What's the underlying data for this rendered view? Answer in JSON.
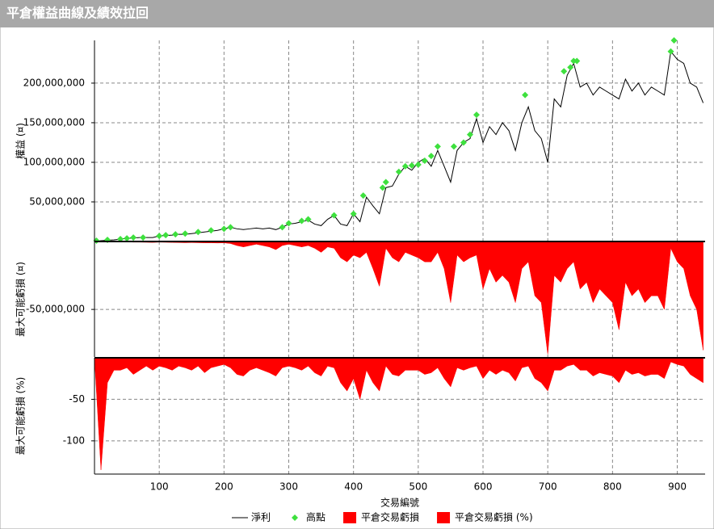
{
  "chart_data": [
    {
      "type": "line",
      "title": "平倉權益曲線及績效拉回",
      "ylabel": "權益 (¤)",
      "x": [
        0,
        10,
        20,
        30,
        40,
        50,
        60,
        70,
        80,
        90,
        100,
        110,
        120,
        130,
        140,
        150,
        160,
        170,
        180,
        190,
        200,
        210,
        220,
        230,
        240,
        250,
        260,
        270,
        280,
        290,
        300,
        310,
        320,
        330,
        340,
        350,
        360,
        370,
        380,
        390,
        400,
        410,
        420,
        430,
        440,
        450,
        460,
        470,
        480,
        490,
        500,
        510,
        520,
        530,
        540,
        550,
        560,
        570,
        580,
        590,
        600,
        610,
        620,
        630,
        640,
        650,
        660,
        670,
        680,
        690,
        700,
        710,
        720,
        730,
        740,
        750,
        760,
        770,
        780,
        790,
        800,
        810,
        820,
        830,
        840,
        850,
        860,
        870,
        880,
        890,
        900,
        910,
        920,
        930,
        940
      ],
      "series": [
        {
          "name": "淨利",
          "type": "line",
          "color": "#000000",
          "values": [
            0,
            1000000,
            1500000,
            2000000,
            3000000,
            4000000,
            4500000,
            5000000,
            5000000,
            5000000,
            7000000,
            7500000,
            8000000,
            9000000,
            9000000,
            10000000,
            11000000,
            12000000,
            13000000,
            14000000,
            16000000,
            18000000,
            16000000,
            15000000,
            16000000,
            17000000,
            16000000,
            17000000,
            15000000,
            18000000,
            22000000,
            23000000,
            25000000,
            27000000,
            22000000,
            20000000,
            28000000,
            33000000,
            22000000,
            20000000,
            35000000,
            25000000,
            56000000,
            45000000,
            35000000,
            68000000,
            70000000,
            85000000,
            95000000,
            90000000,
            100000000,
            105000000,
            95000000,
            115000000,
            95000000,
            75000000,
            115000000,
            125000000,
            130000000,
            155000000,
            125000000,
            145000000,
            135000000,
            150000000,
            140000000,
            115000000,
            150000000,
            170000000,
            140000000,
            130000000,
            100000000,
            180000000,
            170000000,
            210000000,
            225000000,
            195000000,
            200000000,
            185000000,
            195000000,
            190000000,
            185000000,
            180000000,
            205000000,
            190000000,
            200000000,
            185000000,
            195000000,
            190000000,
            185000000,
            240000000,
            230000000,
            225000000,
            200000000,
            195000000,
            175000000
          ]
        },
        {
          "name": "高點",
          "type": "scatter",
          "color": "#3ee03e",
          "x": [
            3,
            20,
            40,
            50,
            60,
            75,
            100,
            110,
            125,
            140,
            160,
            180,
            200,
            210,
            290,
            300,
            320,
            330,
            370,
            400,
            415,
            445,
            450,
            470,
            480,
            490,
            500,
            510,
            520,
            530,
            555,
            570,
            580,
            590,
            665,
            725,
            735,
            740,
            745,
            890,
            895
          ],
          "values": [
            1000000,
            2000000,
            3000000,
            4000000,
            5000000,
            5000000,
            7000000,
            8000000,
            9000000,
            10000000,
            12000000,
            14000000,
            16000000,
            18000000,
            18000000,
            23000000,
            26000000,
            28000000,
            33000000,
            35000000,
            58000000,
            68000000,
            75000000,
            88000000,
            95000000,
            96000000,
            97000000,
            102000000,
            108000000,
            120000000,
            120000000,
            125000000,
            135000000,
            160000000,
            185000000,
            215000000,
            220000000,
            228000000,
            228000000,
            240000000,
            254000000
          ]
        }
      ],
      "xlim": [
        0,
        943
      ],
      "ylim": [
        0,
        254000000
      ],
      "yticks": [
        {
          "value": 50000000,
          "label": "50,000,000"
        },
        {
          "value": 100000000,
          "label": "100,000,000"
        },
        {
          "value": 150000000,
          "label": "150,000,000"
        },
        {
          "value": 200000000,
          "label": "200,000,000"
        }
      ],
      "grid": true
    },
    {
      "type": "area",
      "ylabel": "最大可能虧損 (¤)",
      "x": [
        0,
        10,
        20,
        30,
        40,
        50,
        60,
        70,
        80,
        90,
        100,
        110,
        120,
        130,
        140,
        150,
        160,
        170,
        180,
        190,
        200,
        210,
        220,
        230,
        240,
        250,
        260,
        270,
        280,
        290,
        300,
        310,
        320,
        330,
        340,
        350,
        360,
        370,
        380,
        390,
        400,
        410,
        420,
        430,
        440,
        450,
        460,
        470,
        480,
        490,
        500,
        510,
        520,
        530,
        540,
        550,
        560,
        570,
        580,
        590,
        600,
        610,
        620,
        630,
        640,
        650,
        660,
        670,
        680,
        690,
        700,
        710,
        720,
        730,
        740,
        750,
        760,
        770,
        780,
        790,
        800,
        810,
        820,
        830,
        840,
        850,
        860,
        870,
        880,
        890,
        900,
        910,
        920,
        930,
        940
      ],
      "series": [
        {
          "name": "平倉交易虧損",
          "color": "#ff0000",
          "values": [
            0,
            -200000,
            -300000,
            -300000,
            -400000,
            -300000,
            -500000,
            -500000,
            -600000,
            -700000,
            -500000,
            -600000,
            -700000,
            -800000,
            -900000,
            -800000,
            -900000,
            -1000000,
            -1000000,
            -1100000,
            -1000000,
            -1500000,
            -3000000,
            -4000000,
            -3000000,
            -2000000,
            -3000000,
            -4000000,
            -6000000,
            -3000000,
            -2000000,
            -3000000,
            -4000000,
            -3000000,
            -5000000,
            -8000000,
            -4000000,
            -5000000,
            -12000000,
            -15000000,
            -10000000,
            -12000000,
            -8000000,
            -20000000,
            -33000000,
            -5000000,
            -12000000,
            -15000000,
            -8000000,
            -10000000,
            -12000000,
            -15000000,
            -15000000,
            -8000000,
            -20000000,
            -45000000,
            -10000000,
            -15000000,
            -12000000,
            -10000000,
            -35000000,
            -20000000,
            -30000000,
            -25000000,
            -30000000,
            -45000000,
            -20000000,
            -15000000,
            -40000000,
            -45000000,
            -83000000,
            -25000000,
            -30000000,
            -20000000,
            -15000000,
            -35000000,
            -30000000,
            -45000000,
            -35000000,
            -40000000,
            -45000000,
            -65000000,
            -30000000,
            -40000000,
            -35000000,
            -45000000,
            -40000000,
            -40000000,
            -50000000,
            -5000000,
            -15000000,
            -20000000,
            -40000000,
            -50000000,
            -80000000
          ]
        }
      ],
      "xlim": [
        0,
        943
      ],
      "ylim": [
        -85000000,
        0
      ],
      "yticks": [
        {
          "value": -50000000,
          "label": "-50,000,000"
        }
      ],
      "grid": true
    },
    {
      "type": "area",
      "ylabel": "最大可能虧損 (%)",
      "xlabel": "交易編號",
      "x": [
        0,
        10,
        20,
        30,
        40,
        50,
        60,
        70,
        80,
        90,
        100,
        110,
        120,
        130,
        140,
        150,
        160,
        170,
        180,
        190,
        200,
        210,
        220,
        230,
        240,
        250,
        260,
        270,
        280,
        290,
        300,
        310,
        320,
        330,
        340,
        350,
        360,
        370,
        380,
        390,
        400,
        410,
        420,
        430,
        440,
        450,
        460,
        470,
        480,
        490,
        500,
        510,
        520,
        530,
        540,
        550,
        560,
        570,
        580,
        590,
        600,
        610,
        620,
        630,
        640,
        650,
        660,
        670,
        680,
        690,
        700,
        710,
        720,
        730,
        740,
        750,
        760,
        770,
        780,
        790,
        800,
        810,
        820,
        830,
        840,
        850,
        860,
        870,
        880,
        890,
        900,
        910,
        920,
        930,
        940
      ],
      "series": [
        {
          "name": "平倉交易虧損 (%)",
          "color": "#ff0000",
          "values": [
            0,
            -135,
            -30,
            -15,
            -15,
            -12,
            -20,
            -15,
            -10,
            -15,
            -10,
            -12,
            -15,
            -10,
            -12,
            -15,
            -10,
            -18,
            -12,
            -10,
            -8,
            -12,
            -20,
            -22,
            -15,
            -12,
            -15,
            -18,
            -22,
            -12,
            -10,
            -12,
            -15,
            -10,
            -18,
            -22,
            -10,
            -12,
            -30,
            -40,
            -25,
            -50,
            -15,
            -30,
            -40,
            -10,
            -20,
            -22,
            -15,
            -15,
            -15,
            -20,
            -18,
            -12,
            -25,
            -35,
            -12,
            -15,
            -12,
            -10,
            -25,
            -15,
            -20,
            -15,
            -18,
            -28,
            -12,
            -10,
            -25,
            -30,
            -40,
            -15,
            -15,
            -10,
            -8,
            -15,
            -15,
            -22,
            -18,
            -20,
            -22,
            -30,
            -15,
            -20,
            -18,
            -22,
            -20,
            -20,
            -25,
            -5,
            -8,
            -10,
            -20,
            -25,
            -30
          ]
        }
      ],
      "xlim": [
        0,
        943
      ],
      "ylim": [
        -140,
        0
      ],
      "yticks": [
        -50,
        -100
      ],
      "xticks": [
        100,
        200,
        300,
        400,
        500,
        600,
        700,
        800,
        900
      ],
      "grid": true
    }
  ]
}
